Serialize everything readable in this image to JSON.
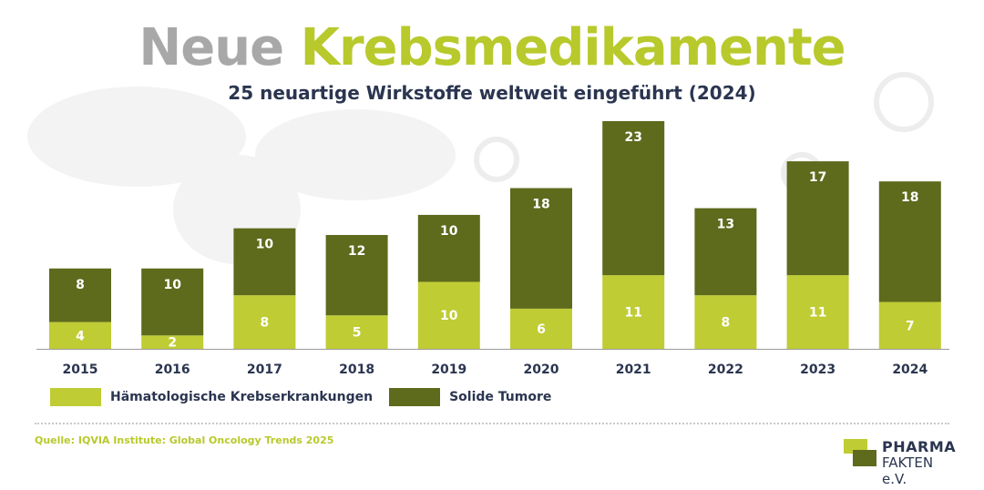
{
  "title_part1": "Neue",
  "title_part2": "Krebsmedikamente",
  "subtitle": "25 neuartige Wirkstoffe weltweit eingeführt (2024)",
  "source": "Quelle: IQVIA Institute: Global Oncology Trends 2025",
  "logo": {
    "line1": "PHARMA",
    "line2": "FAKTEN e.V."
  },
  "colors": {
    "light": "#bfcc34",
    "dark": "#5e6a1c",
    "text": "#2b3550",
    "title_grey": "#a8a8a8"
  },
  "chart_data": {
    "type": "bar",
    "stacked": true,
    "categories": [
      "2015",
      "2016",
      "2017",
      "2018",
      "2019",
      "2020",
      "2021",
      "2022",
      "2023",
      "2024"
    ],
    "series": [
      {
        "name": "Hämatologische Krebserkrankungen",
        "values": [
          4,
          2,
          8,
          5,
          10,
          6,
          11,
          8,
          11,
          7
        ]
      },
      {
        "name": "Solide Tumore",
        "values": [
          8,
          10,
          10,
          12,
          10,
          18,
          23,
          13,
          17,
          18
        ]
      }
    ],
    "ylim": [
      0,
      34
    ],
    "grid": false,
    "legend": "bottom-left",
    "data_labels": true
  }
}
